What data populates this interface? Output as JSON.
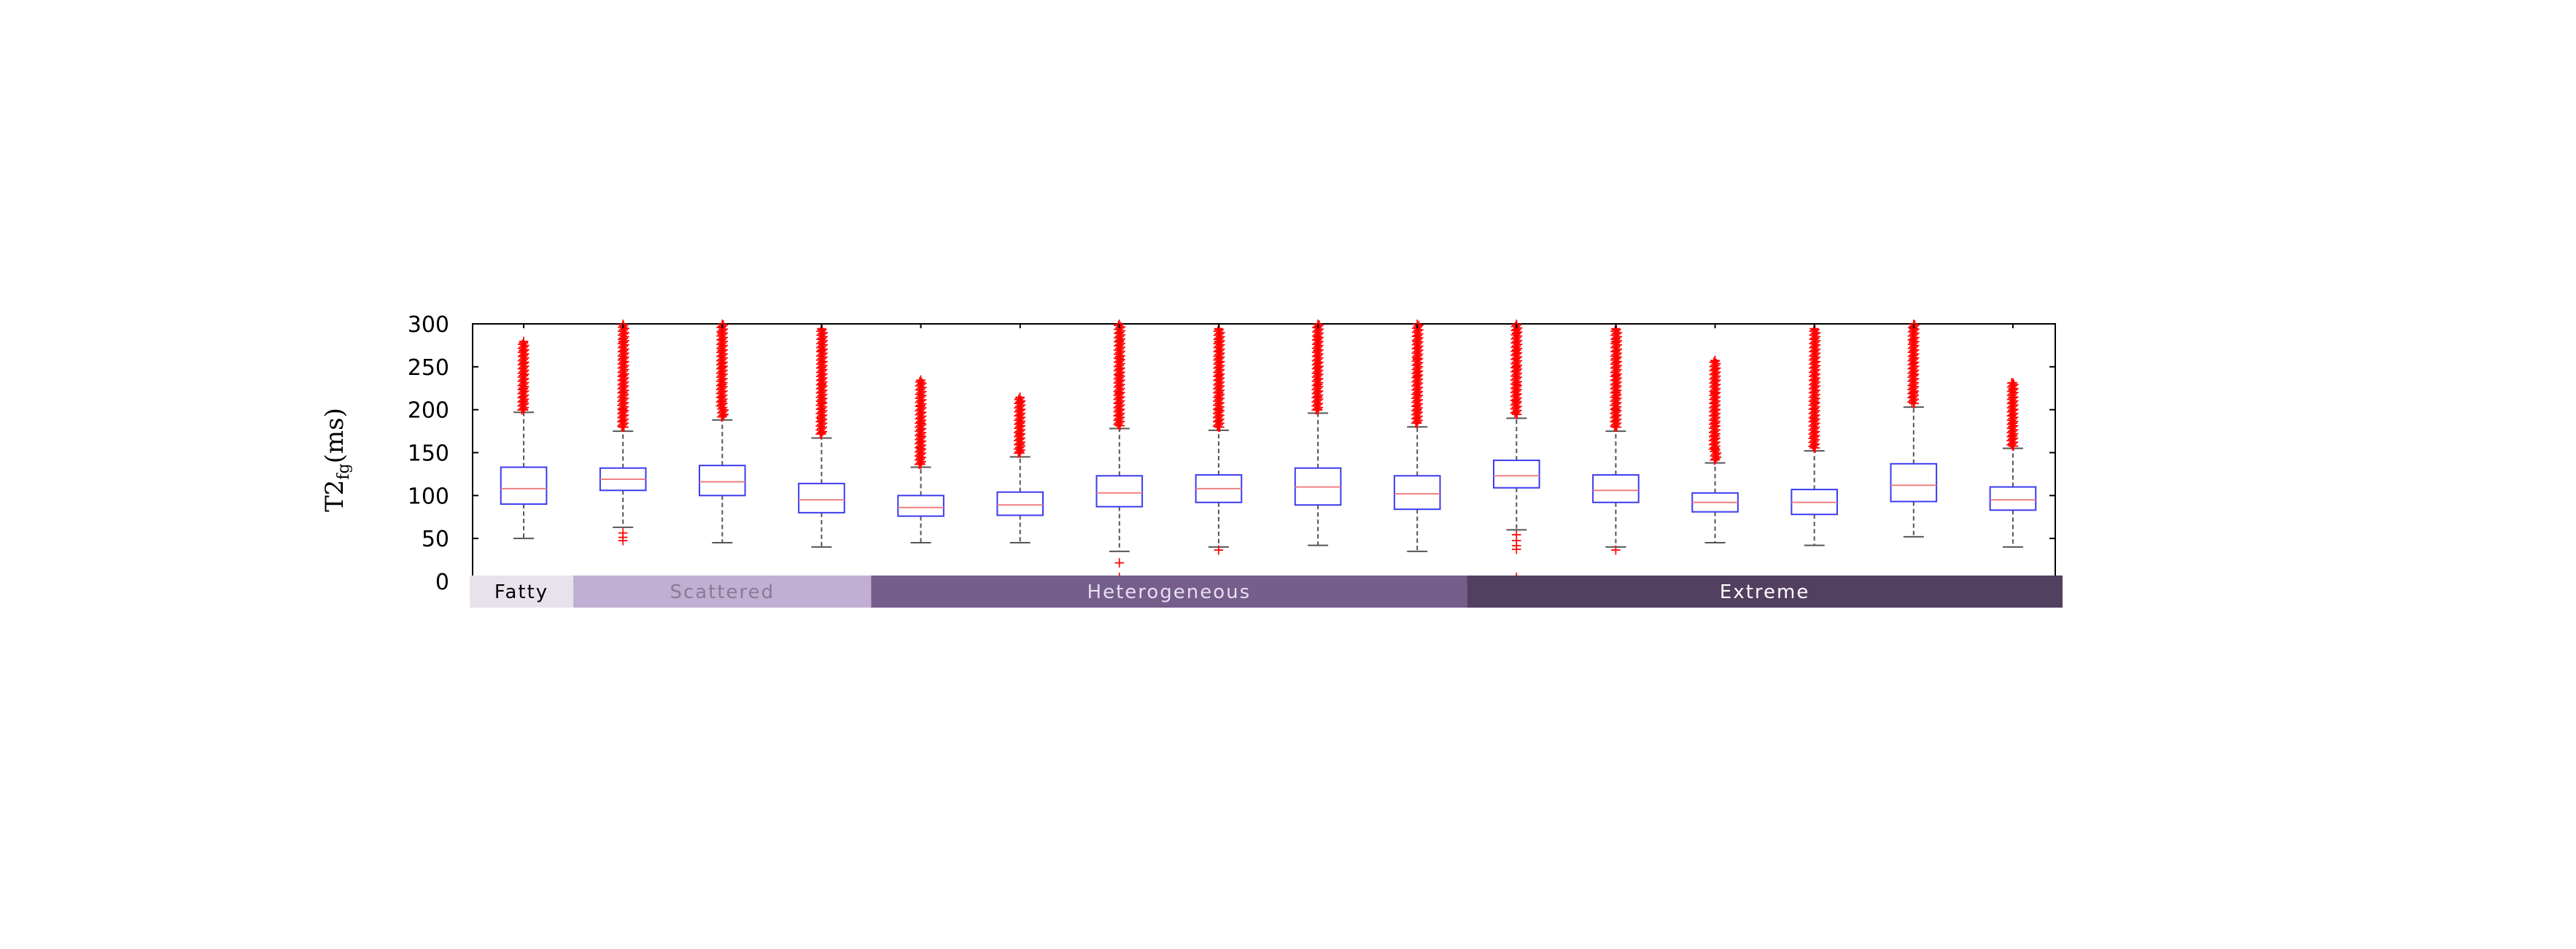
{
  "chart_data": {
    "type": "box",
    "ylabel": "T2",
    "ylabel_subscript": "fg",
    "ylabel_unit": "(ms)",
    "ylim": [
      0,
      300
    ],
    "yticks": [
      0,
      50,
      100,
      150,
      200,
      250,
      300
    ],
    "colors": {
      "box": "#3b3bf0",
      "median": "#f08080",
      "whisker": "#555555",
      "outlier": "#ff0000",
      "axis": "#000000"
    },
    "boxes": [
      {
        "q1": 90,
        "median": 108,
        "q3": 133,
        "whisker_low": 50,
        "whisker_high": 197,
        "outliers_high": [
          200,
          210,
          225,
          240,
          255,
          270,
          280
        ],
        "outliers_low": []
      },
      {
        "q1": 106,
        "median": 119,
        "q3": 132,
        "whisker_low": 63,
        "whisker_high": 175,
        "outliers_high": [
          180,
          200,
          220,
          240,
          260,
          280,
          300
        ],
        "outliers_low": [
          57,
          52,
          48
        ]
      },
      {
        "q1": 100,
        "median": 116,
        "q3": 135,
        "whisker_low": 45,
        "whisker_high": 188,
        "outliers_high": [
          192,
          210,
          230,
          250,
          270,
          290,
          300
        ],
        "outliers_low": []
      },
      {
        "q1": 80,
        "median": 95,
        "q3": 114,
        "whisker_low": 40,
        "whisker_high": 167,
        "outliers_high": [
          172,
          190,
          210,
          230,
          250,
          270,
          295
        ],
        "outliers_low": []
      },
      {
        "q1": 76,
        "median": 86,
        "q3": 100,
        "whisker_low": 45,
        "whisker_high": 133,
        "outliers_high": [
          137,
          145,
          155,
          170,
          185,
          205,
          235
        ],
        "outliers_low": []
      },
      {
        "q1": 77,
        "median": 89,
        "q3": 104,
        "whisker_low": 45,
        "whisker_high": 145,
        "outliers_high": [
          150,
          160,
          172,
          185,
          200,
          210,
          215
        ],
        "outliers_low": []
      },
      {
        "q1": 87,
        "median": 103,
        "q3": 123,
        "whisker_low": 35,
        "whisker_high": 178,
        "outliers_high": [
          182,
          200,
          220,
          240,
          260,
          280,
          300
        ],
        "outliers_low": [
          22,
          5
        ]
      },
      {
        "q1": 92,
        "median": 108,
        "q3": 124,
        "whisker_low": 40,
        "whisker_high": 176,
        "outliers_high": [
          180,
          200,
          220,
          240,
          260,
          280,
          295
        ],
        "outliers_low": [
          37
        ]
      },
      {
        "q1": 89,
        "median": 110,
        "q3": 132,
        "whisker_low": 42,
        "whisker_high": 196,
        "outliers_high": [
          200,
          215,
          230,
          250,
          270,
          285,
          300
        ],
        "outliers_low": []
      },
      {
        "q1": 84,
        "median": 102,
        "q3": 123,
        "whisker_low": 35,
        "whisker_high": 180,
        "outliers_high": [
          185,
          200,
          220,
          240,
          260,
          280,
          300
        ],
        "outliers_low": []
      },
      {
        "q1": 109,
        "median": 123,
        "q3": 141,
        "whisker_low": 60,
        "whisker_high": 190,
        "outliers_high": [
          195,
          210,
          230,
          250,
          270,
          290,
          300
        ],
        "outliers_low": [
          55,
          48,
          42,
          38,
          5
        ]
      },
      {
        "q1": 92,
        "median": 106,
        "q3": 124,
        "whisker_low": 40,
        "whisker_high": 175,
        "outliers_high": [
          180,
          200,
          220,
          240,
          260,
          280,
          295
        ],
        "outliers_low": [
          37
        ]
      },
      {
        "q1": 81,
        "median": 92,
        "q3": 103,
        "whisker_low": 45,
        "whisker_high": 138,
        "outliers_high": [
          142,
          155,
          170,
          185,
          200,
          220,
          258
        ],
        "outliers_low": []
      },
      {
        "q1": 78,
        "median": 92,
        "q3": 107,
        "whisker_low": 42,
        "whisker_high": 152,
        "outliers_high": [
          156,
          170,
          190,
          210,
          235,
          260,
          295
        ],
        "outliers_low": []
      },
      {
        "q1": 93,
        "median": 112,
        "q3": 137,
        "whisker_low": 52,
        "whisker_high": 203,
        "outliers_high": [
          208,
          220,
          240,
          260,
          280,
          295,
          300
        ],
        "outliers_low": []
      },
      {
        "q1": 83,
        "median": 95,
        "q3": 110,
        "whisker_low": 40,
        "whisker_high": 155,
        "outliers_high": [
          158,
          170,
          185,
          200,
          215,
          225,
          232
        ],
        "outliers_low": []
      }
    ],
    "groups": [
      {
        "label": "Fatty",
        "from": 0,
        "to": 0,
        "color": "#e8e2ec",
        "text_color": "#000000"
      },
      {
        "label": "Scattered",
        "from": 1,
        "to": 3,
        "color": "#c0afd2",
        "text_color": "#8a7a96"
      },
      {
        "label": "Heterogeneous",
        "from": 4,
        "to": 9,
        "color": "#755d8c",
        "text_color": "#e6dff0"
      },
      {
        "label": "Extreme",
        "from": 10,
        "to": 15,
        "color": "#524060",
        "text_color": "#ffffff"
      }
    ]
  }
}
